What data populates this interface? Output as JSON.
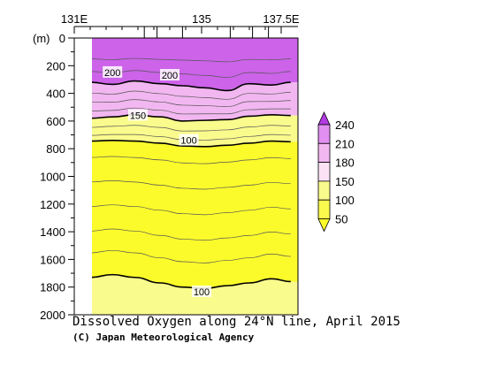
{
  "chart_data": {
    "type": "heatmap",
    "title": "Dissolved Oxygen along 24°N line, April 2015",
    "credit": "(C) Japan Meteorological Agency",
    "x_axis": {
      "ticks": [
        "131E",
        "135",
        "137.5E"
      ],
      "range": [
        131,
        137.5
      ]
    },
    "y_axis": {
      "unit_label": "(m)",
      "ticks": [
        0,
        200,
        400,
        600,
        800,
        1000,
        1200,
        1400,
        1600,
        1800,
        2000
      ],
      "range": [
        0,
        2000
      ],
      "inverted": true
    },
    "colorbar": {
      "levels": [
        50,
        100,
        150,
        180,
        210,
        240
      ],
      "colors": [
        "#fbfb2b",
        "#fafa4e",
        "#fafb8d",
        "#fbfbbc",
        "#fbe3f5",
        "#f2b7f0",
        "#e18ff0",
        "#cc63e9",
        "#b23ae3"
      ]
    },
    "contour_labels": [
      {
        "value": "200",
        "lon": 132.2,
        "depth": 255
      },
      {
        "value": "200",
        "lon": 134.0,
        "depth": 275
      },
      {
        "value": "150",
        "lon": 133.0,
        "depth": 565
      },
      {
        "value": "100",
        "lon": 134.6,
        "depth": 745
      },
      {
        "value": "100",
        "lon": 135.0,
        "depth": 1840
      }
    ],
    "profile": {
      "lon": [
        131.5,
        132.2,
        132.9,
        133.7,
        134.4,
        135.1,
        135.8,
        136.5,
        137.2,
        137.8
      ],
      "iso_200": [
        320,
        335,
        310,
        330,
        345,
        360,
        380,
        330,
        340,
        320
      ],
      "iso_150": [
        580,
        570,
        555,
        570,
        600,
        595,
        590,
        565,
        555,
        560
      ],
      "iso_100": [
        745,
        740,
        745,
        760,
        780,
        785,
        775,
        760,
        745,
        750
      ],
      "iso_100_deep": [
        1730,
        1710,
        1730,
        1770,
        1800,
        1810,
        1790,
        1770,
        1740,
        1760
      ]
    }
  }
}
